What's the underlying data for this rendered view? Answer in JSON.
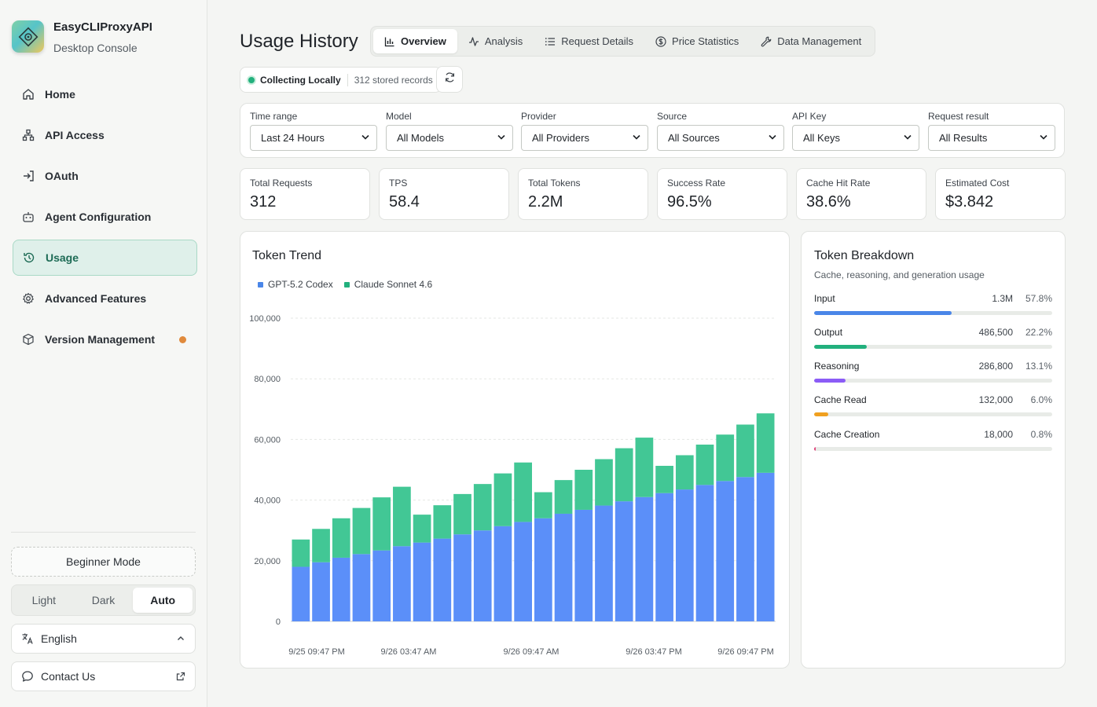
{
  "app": {
    "title": "EasyCLIProxyAPI",
    "subtitle": "Desktop Console"
  },
  "nav": [
    {
      "label": "Home",
      "icon": "home-icon"
    },
    {
      "label": "API Access",
      "icon": "network-icon"
    },
    {
      "label": "OAuth",
      "icon": "login-icon"
    },
    {
      "label": "Agent Configuration",
      "icon": "robot-icon"
    },
    {
      "label": "Usage",
      "icon": "history-icon",
      "active": true
    },
    {
      "label": "Advanced Features",
      "icon": "gear-icon"
    },
    {
      "label": "Version Management",
      "icon": "package-icon",
      "badge_color": "#e08a3c"
    }
  ],
  "sidebar_bottom": {
    "beginner_mode": "Beginner Mode",
    "theme": {
      "options": [
        "Light",
        "Dark",
        "Auto"
      ],
      "selected": "Auto"
    },
    "language": "English",
    "contact": "Contact Us"
  },
  "page": {
    "title": "Usage History"
  },
  "tabs": [
    {
      "label": "Overview",
      "icon": "bar-chart-icon",
      "selected": true
    },
    {
      "label": "Analysis",
      "icon": "activity-icon"
    },
    {
      "label": "Request Details",
      "icon": "list-icon"
    },
    {
      "label": "Price Statistics",
      "icon": "dollar-icon"
    },
    {
      "label": "Data Management",
      "icon": "wrench-icon"
    }
  ],
  "status": {
    "label": "Collecting Locally",
    "count": "312 stored records",
    "color": "#22b07d"
  },
  "filters": [
    {
      "label": "Time range",
      "value": "Last 24 Hours"
    },
    {
      "label": "Model",
      "value": "All Models"
    },
    {
      "label": "Provider",
      "value": "All Providers"
    },
    {
      "label": "Source",
      "value": "All Sources"
    },
    {
      "label": "API Key",
      "value": "All Keys"
    },
    {
      "label": "Request result",
      "value": "All Results"
    }
  ],
  "stats": [
    {
      "label": "Total Requests",
      "value": "312"
    },
    {
      "label": "TPS",
      "value": "58.4"
    },
    {
      "label": "Total Tokens",
      "value": "2.2M"
    },
    {
      "label": "Success Rate",
      "value": "96.5%"
    },
    {
      "label": "Cache Hit Rate",
      "value": "38.6%"
    },
    {
      "label": "Estimated Cost",
      "value": "$3.842"
    }
  ],
  "trend": {
    "title": "Token Trend"
  },
  "chart_data": {
    "type": "bar",
    "stacked": true,
    "title": "Token Trend",
    "ylim": [
      0,
      100000
    ],
    "yticks": [
      "0",
      "20,000",
      "40,000",
      "60,000",
      "80,000",
      "100,000"
    ],
    "xtick_labels": [
      "9/25 09:47 PM",
      "9/26 03:47 AM",
      "9/26 09:47 AM",
      "9/26 03:47 PM",
      "9/26 09:47 PM"
    ],
    "grid": true,
    "legend": "top-left",
    "series": [
      {
        "name": "GPT-5.2 Codex",
        "color": "#5b8ff9",
        "values": [
          18000,
          19500,
          21000,
          22200,
          23400,
          24800,
          26000,
          27300,
          28700,
          30000,
          31400,
          32800,
          34000,
          35500,
          36800,
          38200,
          39600,
          41000,
          42300,
          43500,
          45000,
          46300,
          47600,
          49000
        ]
      },
      {
        "name": "Claude Sonnet 4.6",
        "color": "#42c795",
        "values": [
          9000,
          11000,
          13000,
          15200,
          17500,
          19600,
          9200,
          11000,
          13300,
          15300,
          17400,
          19600,
          8600,
          11100,
          13200,
          15300,
          17500,
          19600,
          9000,
          11300,
          13300,
          15300,
          17300,
          19600
        ]
      }
    ]
  },
  "breakdown": {
    "title": "Token Breakdown",
    "subtitle": "Cache, reasoning, and generation usage",
    "items": [
      {
        "name": "Input",
        "value": "1.3M",
        "pct": "57.8%",
        "fraction": 0.578,
        "color": "#4a86e8"
      },
      {
        "name": "Output",
        "value": "486,500",
        "pct": "22.2%",
        "fraction": 0.222,
        "color": "#22b07d"
      },
      {
        "name": "Reasoning",
        "value": "286,800",
        "pct": "13.1%",
        "fraction": 0.131,
        "color": "#8b5cf6"
      },
      {
        "name": "Cache Read",
        "value": "132,000",
        "pct": "6.0%",
        "fraction": 0.06,
        "color": "#f0a020"
      },
      {
        "name": "Cache Creation",
        "value": "18,000",
        "pct": "0.8%",
        "fraction": 0.008,
        "color": "#e0407a"
      }
    ]
  }
}
